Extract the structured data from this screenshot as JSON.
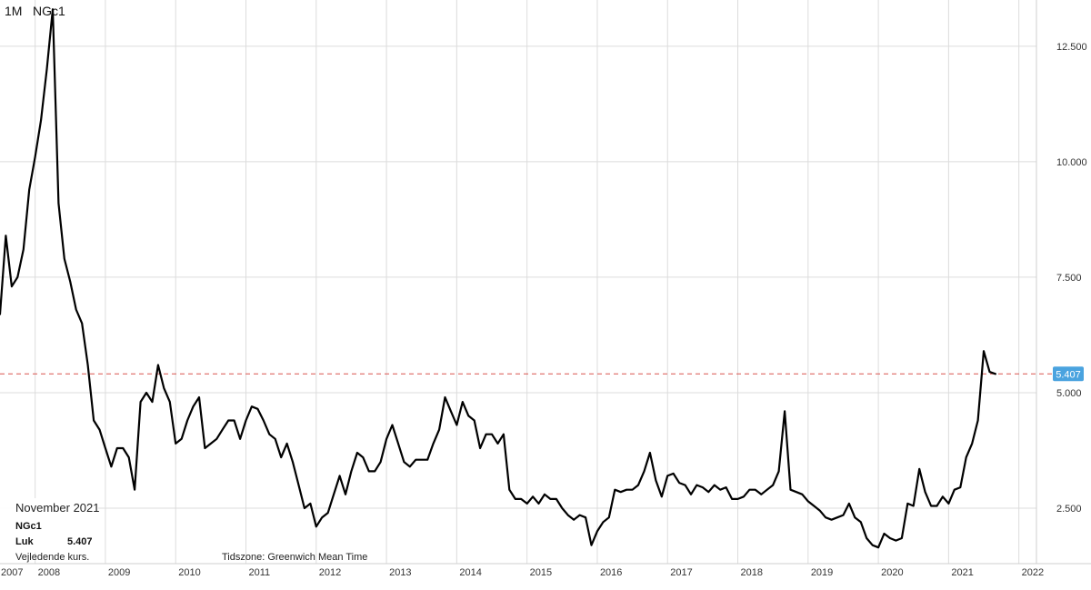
{
  "header": {
    "interval": "1M",
    "symbol": "NGc1"
  },
  "info_box": {
    "date": "November 2021",
    "symbol": "NGc1",
    "close_label": "Luk",
    "close_value": "5.407"
  },
  "footnote": "Vejledende kurs.",
  "timezone": "Tidszone: Greenwich Mean Time",
  "colors": {
    "line": "#000000",
    "grid": "#dcdcdc",
    "ref_line": "#d9534f",
    "badge": "#4aa3df",
    "axis_text": "#333333"
  },
  "chart_data": {
    "type": "line",
    "title": "",
    "xlabel": "",
    "ylabel": "",
    "x_ticks": [
      "2007",
      "2008",
      "2009",
      "2010",
      "2011",
      "2012",
      "2013",
      "2014",
      "2015",
      "2016",
      "2017",
      "2018",
      "2019",
      "2020",
      "2021",
      "2022"
    ],
    "y_ticks": [
      "2.500",
      "5.000",
      "7.500",
      "10.000",
      "12.500"
    ],
    "ylim": [
      1.3,
      13.5
    ],
    "xlim": [
      "2007-07",
      "2022-04"
    ],
    "reference_line": {
      "value": 5.407,
      "label": "5.407",
      "style": "dashed"
    },
    "grid": true,
    "series": [
      {
        "values": [
          [
            "2007-07",
            6.7
          ],
          [
            "2007-08",
            8.4
          ],
          [
            "2007-09",
            7.3
          ],
          [
            "2007-10",
            7.5
          ],
          [
            "2007-11",
            8.1
          ],
          [
            "2007-12",
            9.4
          ],
          [
            "2008-01",
            10.1
          ],
          [
            "2008-02",
            10.9
          ],
          [
            "2008-03",
            12.0
          ],
          [
            "2008-04",
            13.3
          ],
          [
            "2008-05",
            9.1
          ],
          [
            "2008-06",
            7.9
          ],
          [
            "2008-07",
            7.4
          ],
          [
            "2008-08",
            6.8
          ],
          [
            "2008-09",
            6.5
          ],
          [
            "2008-10",
            5.6
          ],
          [
            "2008-11",
            4.4
          ],
          [
            "2008-12",
            4.2
          ],
          [
            "2009-01",
            3.8
          ],
          [
            "2009-02",
            3.4
          ],
          [
            "2009-03",
            3.8
          ],
          [
            "2009-04",
            3.8
          ],
          [
            "2009-05",
            3.6
          ],
          [
            "2009-06",
            2.9
          ],
          [
            "2009-07",
            4.8
          ],
          [
            "2009-08",
            5.0
          ],
          [
            "2009-09",
            4.8
          ],
          [
            "2009-10",
            5.6
          ],
          [
            "2009-11",
            5.1
          ],
          [
            "2009-12",
            4.8
          ],
          [
            "2010-01",
            3.9
          ],
          [
            "2010-02",
            4.0
          ],
          [
            "2010-03",
            4.4
          ],
          [
            "2010-04",
            4.7
          ],
          [
            "2010-05",
            4.9
          ],
          [
            "2010-06",
            3.8
          ],
          [
            "2010-07",
            3.9
          ],
          [
            "2010-08",
            4.0
          ],
          [
            "2010-09",
            4.2
          ],
          [
            "2010-10",
            4.4
          ],
          [
            "2010-11",
            4.4
          ],
          [
            "2010-12",
            4.0
          ],
          [
            "2011-01",
            4.4
          ],
          [
            "2011-02",
            4.7
          ],
          [
            "2011-03",
            4.65
          ],
          [
            "2011-04",
            4.4
          ],
          [
            "2011-05",
            4.1
          ],
          [
            "2011-06",
            4.0
          ],
          [
            "2011-07",
            3.6
          ],
          [
            "2011-08",
            3.9
          ],
          [
            "2011-09",
            3.5
          ],
          [
            "2011-10",
            3.0
          ],
          [
            "2011-11",
            2.5
          ],
          [
            "2011-12",
            2.6
          ],
          [
            "2012-01",
            2.1
          ],
          [
            "2012-02",
            2.3
          ],
          [
            "2012-03",
            2.4
          ],
          [
            "2012-04",
            2.8
          ],
          [
            "2012-05",
            3.2
          ],
          [
            "2012-06",
            2.8
          ],
          [
            "2012-07",
            3.3
          ],
          [
            "2012-08",
            3.7
          ],
          [
            "2012-09",
            3.6
          ],
          [
            "2012-10",
            3.3
          ],
          [
            "2012-11",
            3.3
          ],
          [
            "2012-12",
            3.5
          ],
          [
            "2013-01",
            4.0
          ],
          [
            "2013-02",
            4.3
          ],
          [
            "2013-03",
            3.9
          ],
          [
            "2013-04",
            3.5
          ],
          [
            "2013-05",
            3.4
          ],
          [
            "2013-06",
            3.55
          ],
          [
            "2013-07",
            3.55
          ],
          [
            "2013-08",
            3.55
          ],
          [
            "2013-09",
            3.9
          ],
          [
            "2013-10",
            4.2
          ],
          [
            "2013-11",
            4.9
          ],
          [
            "2013-12",
            4.6
          ],
          [
            "2014-01",
            4.3
          ],
          [
            "2014-02",
            4.8
          ],
          [
            "2014-03",
            4.5
          ],
          [
            "2014-04",
            4.4
          ],
          [
            "2014-05",
            3.8
          ],
          [
            "2014-06",
            4.1
          ],
          [
            "2014-07",
            4.1
          ],
          [
            "2014-08",
            3.9
          ],
          [
            "2014-09",
            4.1
          ],
          [
            "2014-10",
            2.9
          ],
          [
            "2014-11",
            2.7
          ],
          [
            "2014-12",
            2.7
          ],
          [
            "2015-01",
            2.6
          ],
          [
            "2015-02",
            2.75
          ],
          [
            "2015-03",
            2.6
          ],
          [
            "2015-04",
            2.8
          ],
          [
            "2015-05",
            2.7
          ],
          [
            "2015-06",
            2.7
          ],
          [
            "2015-07",
            2.5
          ],
          [
            "2015-08",
            2.35
          ],
          [
            "2015-09",
            2.25
          ],
          [
            "2015-10",
            2.35
          ],
          [
            "2015-11",
            2.3
          ],
          [
            "2015-12",
            1.7
          ],
          [
            "2016-01",
            2.0
          ],
          [
            "2016-02",
            2.2
          ],
          [
            "2016-03",
            2.3
          ],
          [
            "2016-04",
            2.9
          ],
          [
            "2016-05",
            2.85
          ],
          [
            "2016-06",
            2.9
          ],
          [
            "2016-07",
            2.9
          ],
          [
            "2016-08",
            3.0
          ],
          [
            "2016-09",
            3.3
          ],
          [
            "2016-10",
            3.7
          ],
          [
            "2016-11",
            3.1
          ],
          [
            "2016-12",
            2.75
          ],
          [
            "2017-01",
            3.2
          ],
          [
            "2017-02",
            3.25
          ],
          [
            "2017-03",
            3.05
          ],
          [
            "2017-04",
            3.0
          ],
          [
            "2017-05",
            2.8
          ],
          [
            "2017-06",
            3.0
          ],
          [
            "2017-07",
            2.95
          ],
          [
            "2017-08",
            2.85
          ],
          [
            "2017-09",
            3.0
          ],
          [
            "2017-10",
            2.9
          ],
          [
            "2017-11",
            2.95
          ],
          [
            "2017-12",
            2.7
          ],
          [
            "2018-01",
            2.7
          ],
          [
            "2018-02",
            2.75
          ],
          [
            "2018-03",
            2.9
          ],
          [
            "2018-04",
            2.9
          ],
          [
            "2018-05",
            2.8
          ],
          [
            "2018-06",
            2.9
          ],
          [
            "2018-07",
            3.0
          ],
          [
            "2018-08",
            3.3
          ],
          [
            "2018-09",
            4.6
          ],
          [
            "2018-10",
            2.9
          ],
          [
            "2018-11",
            2.85
          ],
          [
            "2018-12",
            2.8
          ],
          [
            "2019-01",
            2.65
          ],
          [
            "2019-02",
            2.55
          ],
          [
            "2019-03",
            2.45
          ],
          [
            "2019-04",
            2.3
          ],
          [
            "2019-05",
            2.25
          ],
          [
            "2019-06",
            2.3
          ],
          [
            "2019-07",
            2.35
          ],
          [
            "2019-08",
            2.6
          ],
          [
            "2019-09",
            2.3
          ],
          [
            "2019-10",
            2.2
          ],
          [
            "2019-11",
            1.85
          ],
          [
            "2019-12",
            1.7
          ],
          [
            "2020-01",
            1.65
          ],
          [
            "2020-02",
            1.95
          ],
          [
            "2020-03",
            1.85
          ],
          [
            "2020-04",
            1.8
          ],
          [
            "2020-05",
            1.85
          ],
          [
            "2020-06",
            2.6
          ],
          [
            "2020-07",
            2.55
          ],
          [
            "2020-08",
            3.35
          ],
          [
            "2020-09",
            2.85
          ],
          [
            "2020-10",
            2.55
          ],
          [
            "2020-11",
            2.55
          ],
          [
            "2020-12",
            2.75
          ],
          [
            "2021-01",
            2.6
          ],
          [
            "2021-02",
            2.9
          ],
          [
            "2021-03",
            2.95
          ],
          [
            "2021-04",
            3.6
          ],
          [
            "2021-05",
            3.9
          ],
          [
            "2021-06",
            4.4
          ],
          [
            "2021-07",
            5.9
          ],
          [
            "2021-08",
            5.45
          ],
          [
            "2021-09",
            5.407
          ]
        ]
      }
    ]
  }
}
